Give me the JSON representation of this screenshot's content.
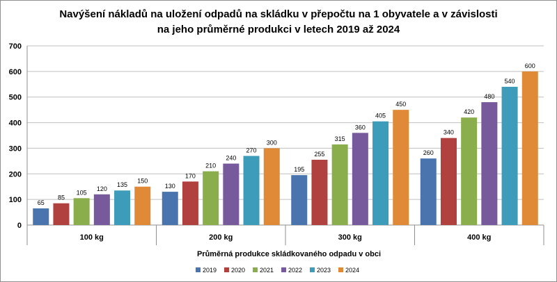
{
  "chart_data": {
    "type": "bar",
    "title_lines": [
      "Navýšení nákladů  na uložení odpadů  na skládku  v přepočtu na 1 obyvatele a v závislosti",
      "na jeho průměrné  produkci  v letech 2019 až 2024"
    ],
    "xlabel": "Průměrná produkce skládkovaného odpadu v obci",
    "ylabel": "",
    "ylim": [
      0,
      700
    ],
    "yticks": [
      0,
      100,
      200,
      300,
      400,
      500,
      600,
      700
    ],
    "grid": true,
    "legend_position": "bottom",
    "categories": [
      "100 kg",
      "200 kg",
      "300 kg",
      "400 kg"
    ],
    "series": [
      {
        "name": "2019",
        "color": "#4a74ad",
        "values": [
          65,
          130,
          195,
          260
        ]
      },
      {
        "name": "2020",
        "color": "#b0413e",
        "values": [
          85,
          170,
          255,
          340
        ]
      },
      {
        "name": "2021",
        "color": "#8bae4c",
        "values": [
          105,
          210,
          315,
          420
        ]
      },
      {
        "name": "2022",
        "color": "#765a9c",
        "values": [
          120,
          240,
          360,
          480
        ]
      },
      {
        "name": "2023",
        "color": "#3e9cbb",
        "values": [
          135,
          270,
          405,
          540
        ]
      },
      {
        "name": "2024",
        "color": "#e08a38",
        "values": [
          150,
          300,
          450,
          600
        ]
      }
    ]
  }
}
